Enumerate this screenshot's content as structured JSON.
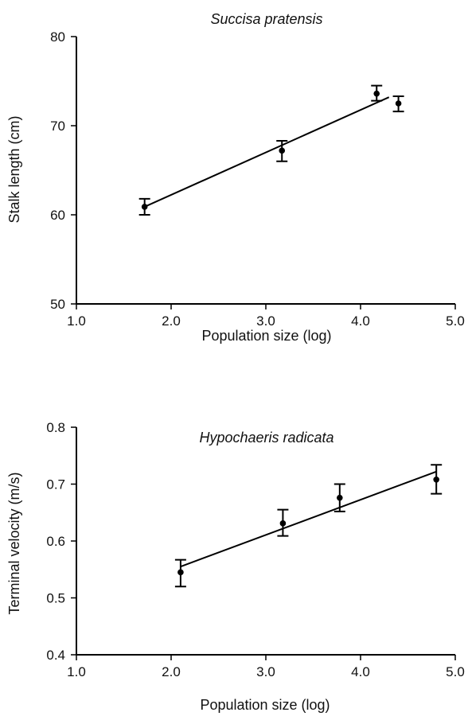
{
  "chart_data": [
    {
      "type": "scatter",
      "title": "Succisa pratensis",
      "xlabel": "Population size (log)",
      "ylabel": "Stalk length (cm)",
      "xlim": [
        1.0,
        5.0
      ],
      "ylim": [
        50,
        80
      ],
      "x_ticks": [
        "1.0",
        "2.0",
        "3.0",
        "4.0",
        "5.0"
      ],
      "y_ticks": [
        "50",
        "60",
        "70",
        "80"
      ],
      "points": [
        {
          "x": 1.72,
          "y": 60.9,
          "err_low": 60.0,
          "err_high": 61.8
        },
        {
          "x": 3.17,
          "y": 67.2,
          "err_low": 66.0,
          "err_high": 68.3
        },
        {
          "x": 4.17,
          "y": 73.6,
          "err_low": 72.8,
          "err_high": 74.5
        },
        {
          "x": 4.4,
          "y": 72.5,
          "err_low": 71.6,
          "err_high": 73.3
        }
      ],
      "fit_line": {
        "x1": 1.72,
        "y1": 60.9,
        "x2": 4.3,
        "y2": 73.2
      },
      "grid": false
    },
    {
      "type": "scatter",
      "title": "Hypochaeris radicata",
      "xlabel": "Population size (log)",
      "ylabel": "Terminal velocity (m/s)",
      "xlim": [
        1.0,
        5.0
      ],
      "ylim": [
        0.4,
        0.8
      ],
      "x_ticks": [
        "1.0",
        "2.0",
        "3.0",
        "4.0",
        "5.0"
      ],
      "y_ticks": [
        "0.4",
        "0.5",
        "0.6",
        "0.7",
        "0.8"
      ],
      "points": [
        {
          "x": 2.1,
          "y": 0.545,
          "err_low": 0.52,
          "err_high": 0.567
        },
        {
          "x": 3.18,
          "y": 0.631,
          "err_low": 0.609,
          "err_high": 0.655
        },
        {
          "x": 3.78,
          "y": 0.676,
          "err_low": 0.652,
          "err_high": 0.7
        },
        {
          "x": 4.8,
          "y": 0.708,
          "err_low": 0.683,
          "err_high": 0.734
        }
      ],
      "fit_line": {
        "x1": 2.1,
        "y1": 0.555,
        "x2": 4.8,
        "y2": 0.722
      },
      "grid": false
    }
  ]
}
